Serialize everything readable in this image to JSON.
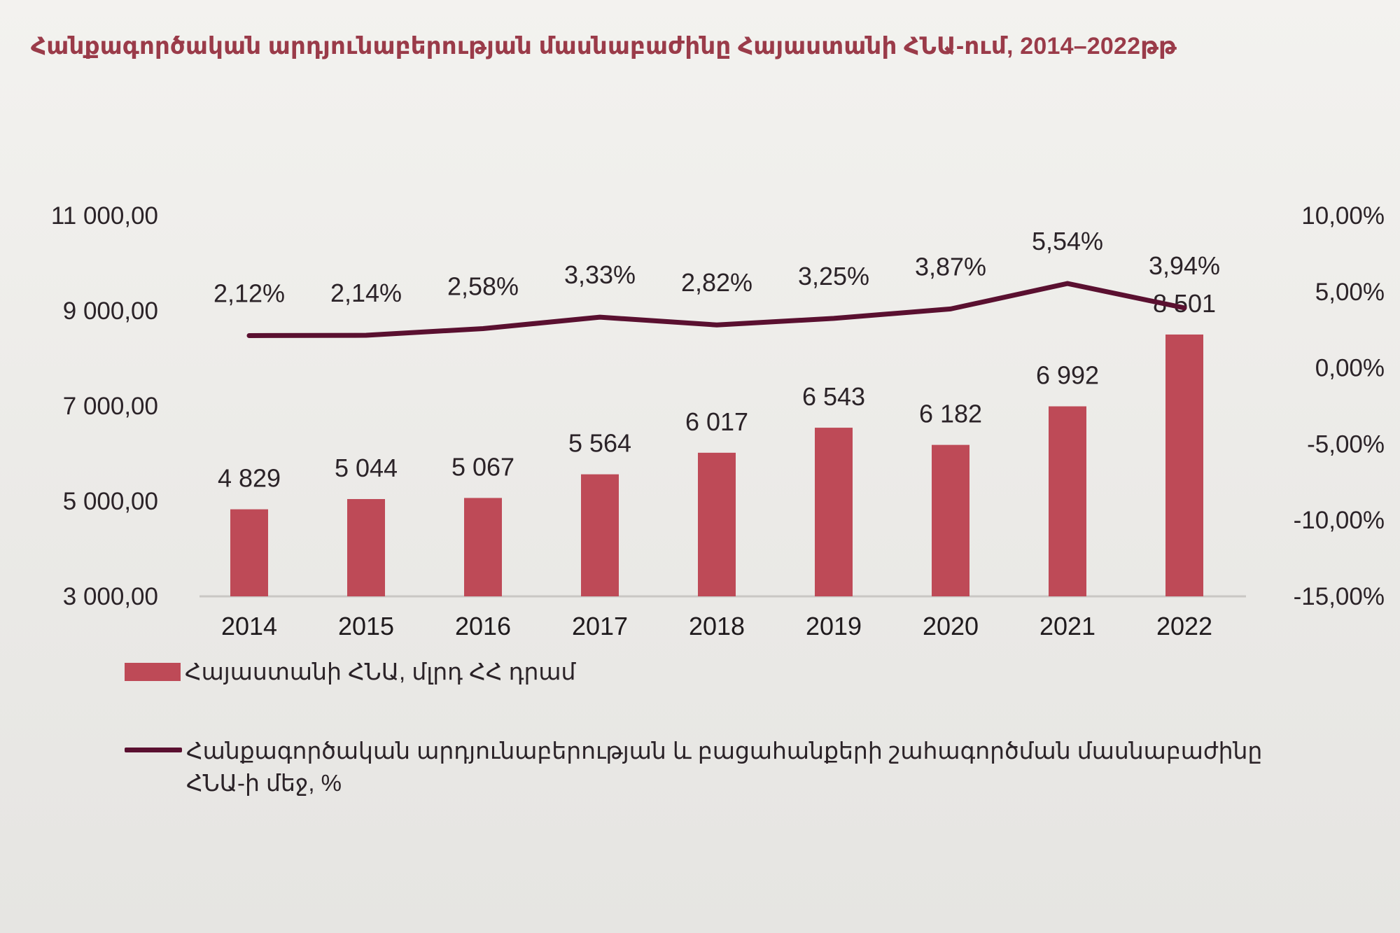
{
  "title": "Հանքագործական արդյունաբերության մասնաբաժինը Հայաստանի ՀՆԱ-ում, 2014–2022թթ",
  "chart_data": {
    "type": "bar",
    "categories": [
      "2014",
      "2015",
      "2016",
      "2017",
      "2018",
      "2019",
      "2020",
      "2021",
      "2022"
    ],
    "series": [
      {
        "name": "Հայաստանի ՀՆԱ, մլրդ ՀՀ դրամ",
        "type": "bar",
        "axis": "left",
        "color": "#be4a57",
        "values": [
          4829,
          5044,
          5067,
          5564,
          6017,
          6543,
          6182,
          6992,
          8501
        ],
        "labels": [
          "4 829",
          "5 044",
          "5 067",
          "5 564",
          "6 017",
          "6 543",
          "6 182",
          "6 992",
          "8 501"
        ]
      },
      {
        "name": "Հանքագործական արդյունաբերության և բացահանքերի շահագործման մասնաբաժինը ՀՆԱ-ի մեջ, %",
        "type": "line",
        "axis": "right",
        "color": "#5a1030",
        "values": [
          2.12,
          2.14,
          2.58,
          3.33,
          2.82,
          3.25,
          3.87,
          5.54,
          3.94
        ],
        "labels": [
          "2,12%",
          "2,14%",
          "2,58%",
          "3,33%",
          "2,82%",
          "3,25%",
          "3,87%",
          "5,54%",
          "3,94%"
        ]
      }
    ],
    "left_axis": {
      "ylim": [
        3000,
        11000
      ],
      "ticks": [
        3000,
        5000,
        7000,
        9000,
        11000
      ],
      "tick_labels": [
        "3 000,00",
        "5 000,00",
        "7 000,00",
        "9 000,00",
        "11 000,00"
      ]
    },
    "right_axis": {
      "ylim": [
        -15,
        10
      ],
      "ticks": [
        -15,
        -10,
        -5,
        0,
        5,
        10
      ],
      "tick_labels": [
        "-15,00%",
        "-10,00%",
        "-5,00%",
        "0,00%",
        "5,00%",
        "10,00%"
      ]
    },
    "grid": false,
    "legend_position": "bottom"
  }
}
